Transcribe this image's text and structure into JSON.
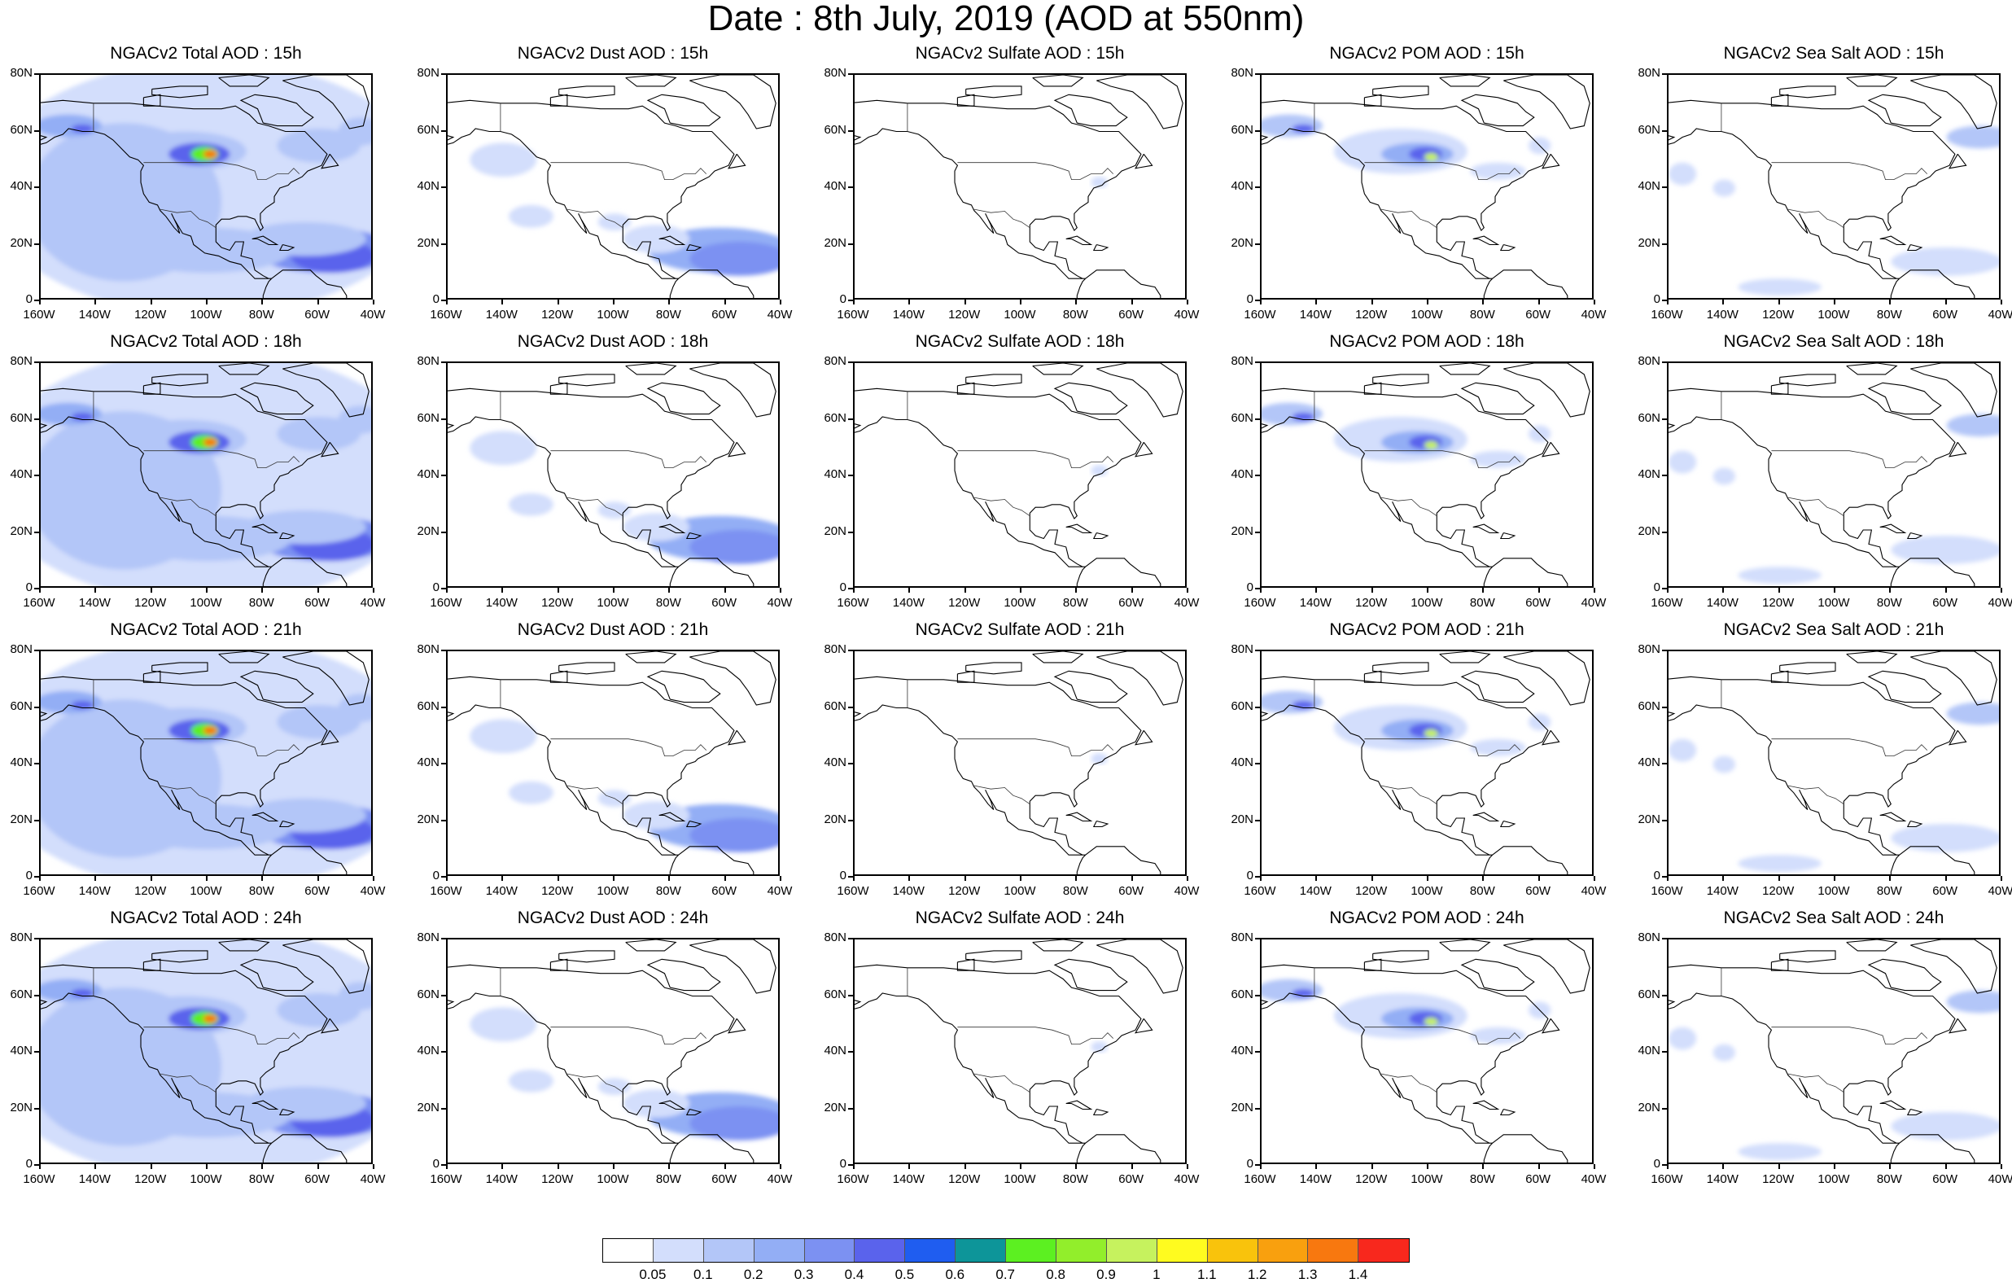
{
  "title": "Date : 8th July, 2019 (AOD at 550nm)",
  "panels": [
    [
      "NGACv2 Total AOD : 15h",
      "NGACv2 Dust AOD : 15h",
      "NGACv2 Sulfate AOD : 15h",
      "NGACv2 POM AOD : 15h",
      "NGACv2 Sea Salt AOD : 15h"
    ],
    [
      "NGACv2 Total AOD : 18h",
      "NGACv2 Dust AOD : 18h",
      "NGACv2 Sulfate AOD : 18h",
      "NGACv2 POM AOD : 18h",
      "NGACv2 Sea Salt AOD : 18h"
    ],
    [
      "NGACv2 Total AOD : 21h",
      "NGACv2 Dust AOD : 21h",
      "NGACv2 Sulfate AOD : 21h",
      "NGACv2 POM AOD : 21h",
      "NGACv2 Sea Salt AOD : 21h"
    ],
    [
      "NGACv2 Total AOD : 24h",
      "NGACv2 Dust AOD : 24h",
      "NGACv2 Sulfate AOD : 24h",
      "NGACv2 POM AOD : 24h",
      "NGACv2 Sea Salt  AOD : 24h"
    ]
  ],
  "y_ticks": [
    "80N",
    "60N",
    "40N",
    "20N",
    "0"
  ],
  "x_ticks": [
    "160W",
    "140W",
    "120W",
    "100W",
    "80W",
    "60W",
    "40W"
  ],
  "colorbar": {
    "colors": [
      "#ffffff",
      "#d3defc",
      "#b3c6f8",
      "#93aef5",
      "#7c91f2",
      "#5a63ec",
      "#1f5df0",
      "#0d9599",
      "#5cf021",
      "#92ee2b",
      "#c6f25e",
      "#fffb1f",
      "#f9c30c",
      "#f9a00e",
      "#f8780f",
      "#f8281d"
    ],
    "labels": [
      "0.05",
      "0.1",
      "0.2",
      "0.3",
      "0.4",
      "0.5",
      "0.6",
      "0.7",
      "0.8",
      "0.9",
      "1",
      "1.1",
      "1.2",
      "1.3",
      "1.4"
    ]
  }
}
